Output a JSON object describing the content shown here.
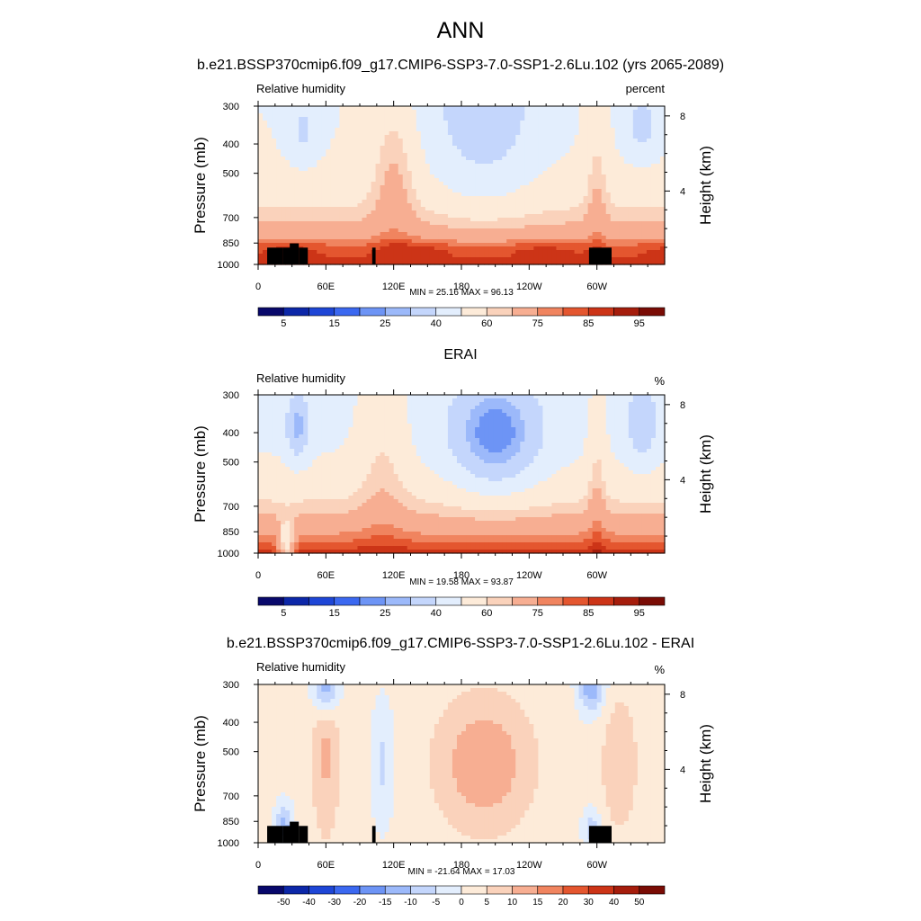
{
  "header": {
    "title": "ANN"
  },
  "chart_data": [
    {
      "type": "heatmap",
      "title": "b.e21.BSSP370cmip6.f09_g17.CMIP6-SSP3-7.0-SSP1-2.6Lu.102 (yrs 2065-2089)",
      "variable": "Relative humidity",
      "units": "percent",
      "ylabel": "Pressure (mb)",
      "ylabel_right": "Height (km)",
      "x_ticks": [
        "0",
        "60E",
        "120E",
        "180",
        "120W",
        "60W"
      ],
      "y_ticks": [
        "300",
        "400",
        "500",
        "700",
        "850",
        "1000"
      ],
      "y_ticks_right": [
        "8",
        "4"
      ],
      "ylim": [
        1000,
        300
      ],
      "stats": "MIN =  25.16  MAX =  96.13",
      "colorbar_labels": [
        "5",
        "15",
        "25",
        "40",
        "60",
        "75",
        "85",
        "95"
      ],
      "colorbar_colors": [
        "#08086b",
        "#0c27a8",
        "#1e46d6",
        "#3b68f0",
        "#6d94f5",
        "#9cb9fa",
        "#c4d6fc",
        "#e3eefd",
        "#fdebd9",
        "#fad2bb",
        "#f7ae92",
        "#f0845f",
        "#e4562f",
        "#cc3417",
        "#a51d0c",
        "#7a0c05"
      ],
      "min": 25.16,
      "max": 96.13
    },
    {
      "type": "heatmap",
      "title": "ERAI",
      "variable": "Relative humidity",
      "units": "%",
      "ylabel": "Pressure (mb)",
      "ylabel_right": "Height (km)",
      "x_ticks": [
        "0",
        "60E",
        "120E",
        "180",
        "120W",
        "60W"
      ],
      "y_ticks": [
        "300",
        "400",
        "500",
        "700",
        "850",
        "1000"
      ],
      "y_ticks_right": [
        "8",
        "4"
      ],
      "ylim": [
        1000,
        300
      ],
      "stats": "MIN =  19.58  MAX =  93.87",
      "colorbar_labels": [
        "5",
        "15",
        "25",
        "40",
        "60",
        "75",
        "85",
        "95"
      ],
      "colorbar_colors": [
        "#08086b",
        "#0c27a8",
        "#1e46d6",
        "#3b68f0",
        "#6d94f5",
        "#9cb9fa",
        "#c4d6fc",
        "#e3eefd",
        "#fdebd9",
        "#fad2bb",
        "#f7ae92",
        "#f0845f",
        "#e4562f",
        "#cc3417",
        "#a51d0c",
        "#7a0c05"
      ],
      "min": 19.58,
      "max": 93.87
    },
    {
      "type": "heatmap",
      "title": "b.e21.BSSP370cmip6.f09_g17.CMIP6-SSP3-7.0-SSP1-2.6Lu.102 - ERAI",
      "variable": "Relative humidity",
      "units": "%",
      "ylabel": "Pressure (mb)",
      "ylabel_right": "Height (km)",
      "x_ticks": [
        "0",
        "60E",
        "120E",
        "180",
        "120W",
        "60W"
      ],
      "y_ticks": [
        "300",
        "400",
        "500",
        "700",
        "850",
        "1000"
      ],
      "y_ticks_right": [
        "8",
        "4"
      ],
      "ylim": [
        1000,
        300
      ],
      "stats": "MIN = -21.64  MAX =  17.03",
      "colorbar_labels": [
        "-50",
        "-40",
        "-30",
        "-20",
        "-15",
        "-10",
        "-5",
        "0",
        "5",
        "10",
        "15",
        "20",
        "30",
        "40",
        "50"
      ],
      "colorbar_colors": [
        "#08086b",
        "#0c27a8",
        "#1e46d6",
        "#3b68f0",
        "#6d94f5",
        "#9cb9fa",
        "#c4d6fc",
        "#e3eefd",
        "#fdebd9",
        "#fad2bb",
        "#f7ae92",
        "#f0845f",
        "#e4562f",
        "#cc3417",
        "#a51d0c",
        "#7a0c05"
      ],
      "min": -21.64,
      "max": 17.03
    }
  ]
}
